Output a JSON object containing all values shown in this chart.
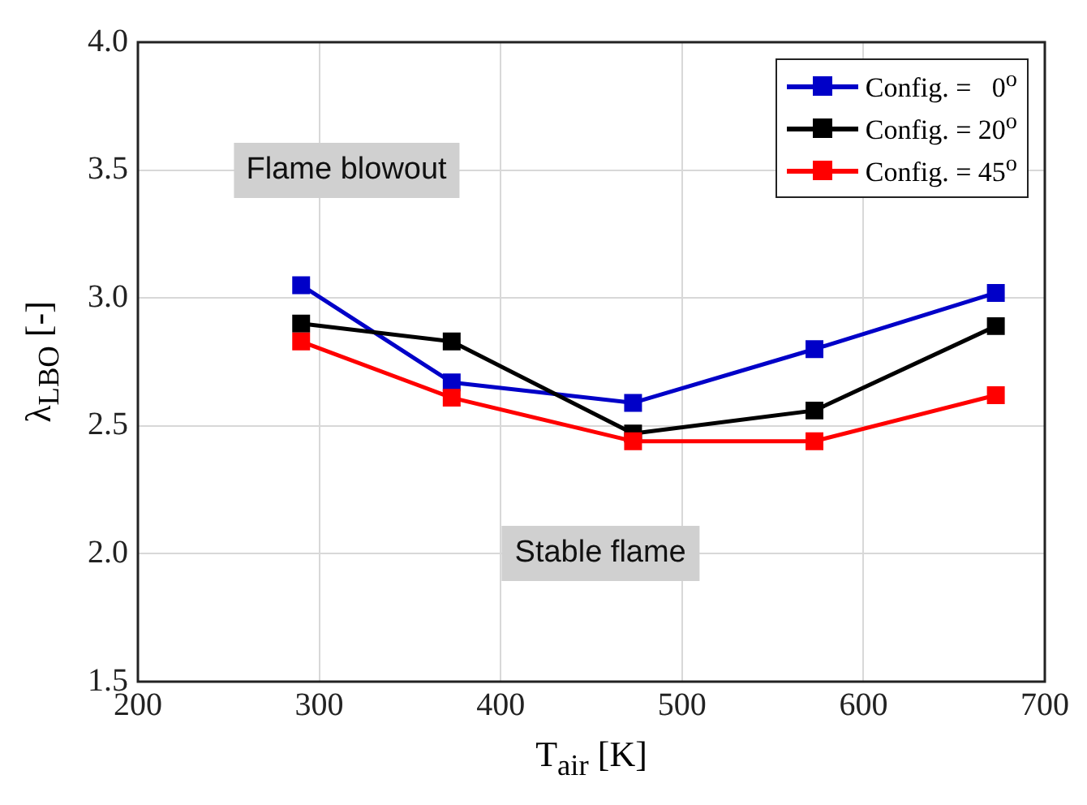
{
  "chart_data": {
    "type": "line",
    "xlabel": "T$_{air}$ [K]",
    "ylabel": "λ$_{LBO}$ [-]",
    "x": [
      290,
      373,
      473,
      573,
      673
    ],
    "series": [
      {
        "name": "Config. =   0$^{o}$",
        "color": "#0000c8",
        "values": [
          3.05,
          2.67,
          2.59,
          2.8,
          3.02
        ]
      },
      {
        "name": "Config. = 20$^{o}$",
        "color": "#000000",
        "values": [
          2.9,
          2.83,
          2.47,
          2.56,
          2.89
        ]
      },
      {
        "name": "Config. = 45$^{o}$",
        "color": "#ff0000",
        "values": [
          2.83,
          2.61,
          2.44,
          2.44,
          2.62
        ]
      }
    ],
    "xlim": [
      200,
      700
    ],
    "xticks": [
      200,
      300,
      400,
      500,
      600,
      700
    ],
    "ylim": [
      1.5,
      4.0
    ],
    "yticks": [
      {
        "value": 1.5,
        "label": "1.5"
      },
      {
        "value": 2,
        "label": "2.0"
      },
      {
        "value": 2.5,
        "label": "2.5"
      },
      {
        "value": 3,
        "label": "3.0"
      },
      {
        "value": 3.5,
        "label": "3.5"
      },
      {
        "value": 4,
        "label": "4.0"
      }
    ],
    "grid": true,
    "legend": "top right",
    "marker": "square",
    "line_style": "solid",
    "annotations": [
      "Flame blowout",
      "Stable flame"
    ]
  }
}
